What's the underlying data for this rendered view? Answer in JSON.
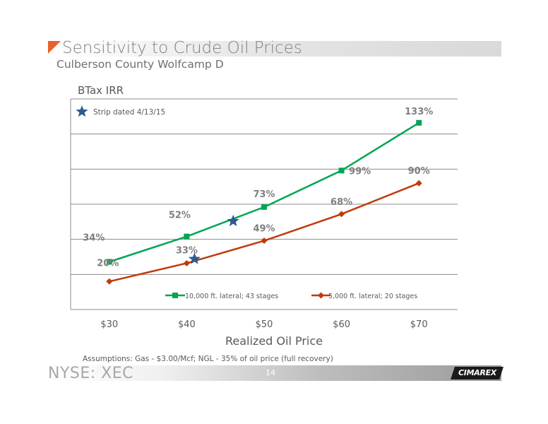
{
  "slide": {
    "title": "Sensitivity to Crude Oil Prices",
    "subtitle": "Culberson County Wolfcamp D",
    "footnote": "Assumptions: Gas - $3.00/Mcf; NGL - 35% of oil price (full recovery)",
    "ticker": "NYSE: XEC",
    "page_number": "14",
    "logo_text": "CIMAREX"
  },
  "colors": {
    "accent": "#e8622c",
    "series_lateral_10000": "#00a651",
    "series_lateral_5000": "#c0390b",
    "star": "#2b5b91"
  },
  "chart_data": {
    "type": "line",
    "ylabel": "BTax IRR",
    "xlabel": "Realized Oil Price",
    "categories": [
      "$30",
      "$40",
      "$50",
      "$60",
      "$70"
    ],
    "x": [
      30,
      40,
      50,
      60,
      70
    ],
    "xlim": [
      25,
      75
    ],
    "ylim": [
      0,
      150
    ],
    "grid": true,
    "legend_position": "bottom",
    "series": [
      {
        "name": "10,000 ft. lateral; 43 stages",
        "values": [
          34,
          52,
          73,
          99,
          133
        ],
        "labels": [
          "34%",
          "52%",
          "73%",
          "99%",
          "133%"
        ],
        "marker": "square"
      },
      {
        "name": "5,000 ft. lateral; 20 stages",
        "values": [
          20,
          33,
          49,
          68,
          90
        ],
        "labels": [
          "20%",
          "33%",
          "49%",
          "68%",
          "90%"
        ],
        "marker": "diamond"
      }
    ],
    "annotations": [
      {
        "text": "Strip dated  4/13/15",
        "marker": "star"
      },
      {
        "marker": "star",
        "x": 46,
        "y": 63
      },
      {
        "marker": "star",
        "x": 41,
        "y": 36
      }
    ]
  }
}
